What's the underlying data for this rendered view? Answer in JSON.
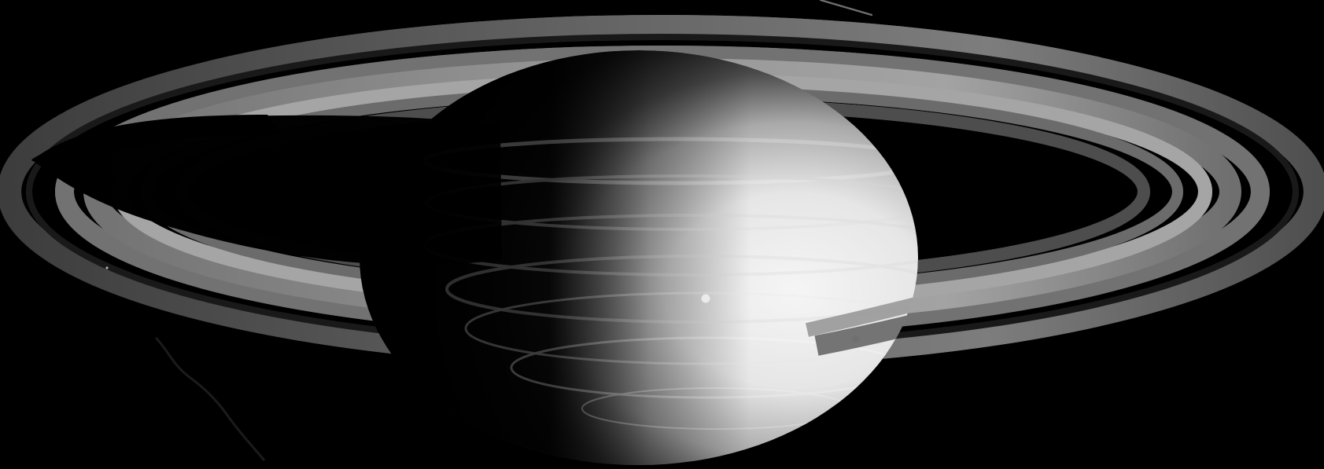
{
  "image": {
    "subject": "saturn",
    "palette": {
      "space": "#000000",
      "planet_light": "#f1f1f1",
      "planet_mid": "#a8a8a8",
      "planet_dark": "#1b1b1b",
      "ring_light": "#9a9a9a",
      "ring_mid": "#6d6d6d",
      "ring_dark": "#3b3b3b"
    },
    "icons": [
      "planet-icon",
      "ring-icon",
      "shadow-icon",
      "moon-icon"
    ]
  }
}
